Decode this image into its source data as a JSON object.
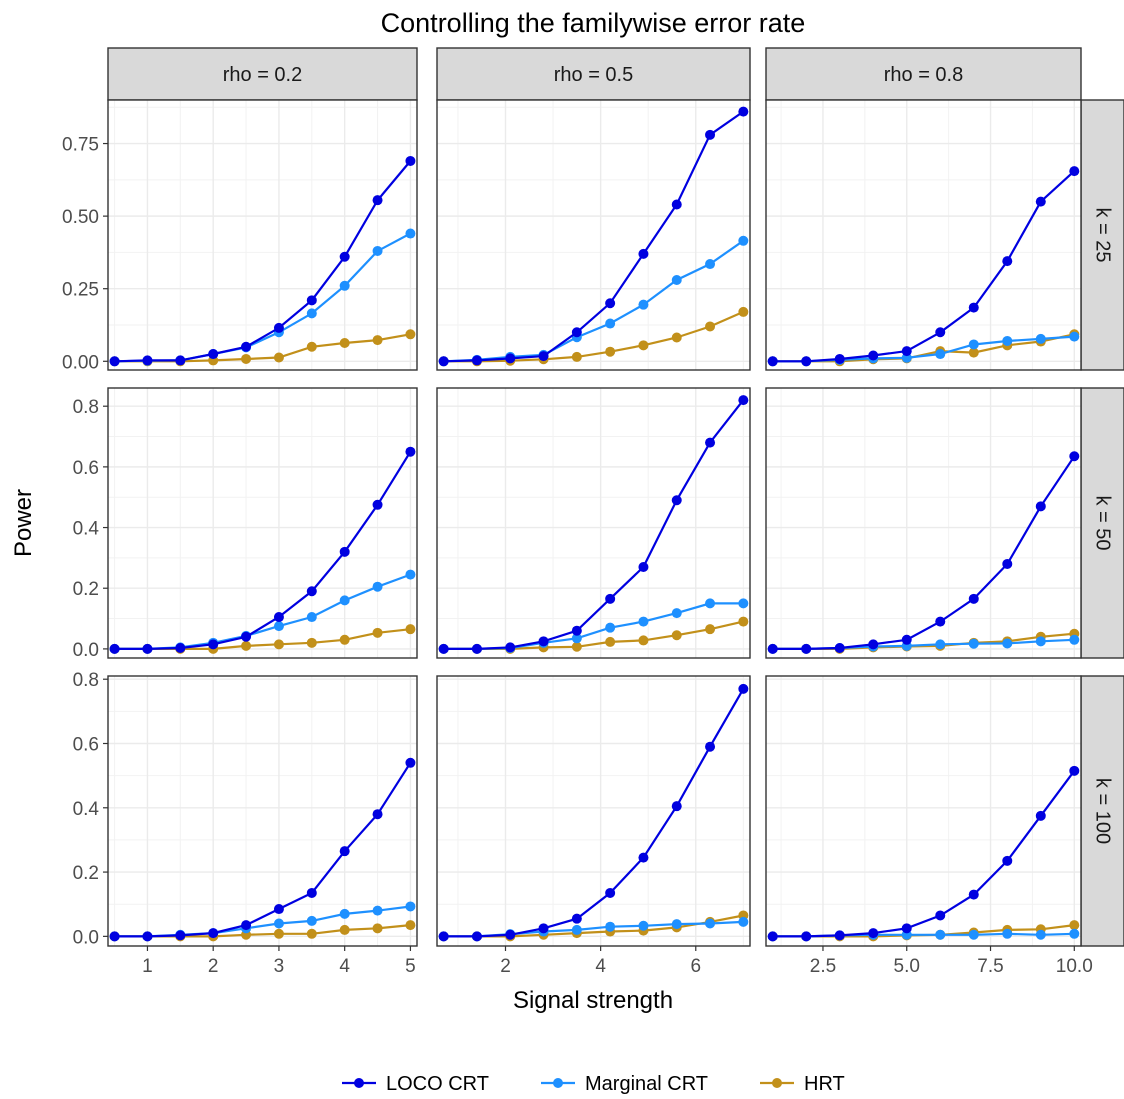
{
  "chart_data": {
    "type": "line",
    "title": "Controlling the familywise error rate",
    "xlabel": "Signal strength",
    "ylabel": "Power",
    "grid": true,
    "legend_position": "bottom",
    "facet_cols": [
      "rho = 0.2",
      "rho = 0.5",
      "rho = 0.8"
    ],
    "facet_rows": [
      "k = 25",
      "k = 50",
      "k = 100"
    ],
    "columns": [
      {
        "x": [
          0.5,
          1.0,
          1.5,
          2.0,
          2.5,
          3.0,
          3.5,
          4.0,
          4.5,
          5.0
        ],
        "xlim": [
          0.4,
          5.1
        ],
        "xticks": [
          1,
          2,
          3,
          4,
          5
        ],
        "xtick_labels": [
          "1",
          "2",
          "3",
          "4",
          "5"
        ]
      },
      {
        "x": [
          0.7,
          1.4,
          2.1,
          2.8,
          3.5,
          4.2,
          4.9,
          5.6,
          6.3,
          7.0
        ],
        "xlim": [
          0.56,
          7.14
        ],
        "xticks": [
          2,
          4,
          6
        ],
        "xtick_labels": [
          "2",
          "4",
          "6"
        ]
      },
      {
        "x": [
          1,
          2,
          3,
          4,
          5,
          6,
          7,
          8,
          9,
          10
        ],
        "xlim": [
          0.8,
          10.2
        ],
        "xticks": [
          2.5,
          5.0,
          7.5,
          10.0
        ],
        "xtick_labels": [
          "2.5",
          "5.0",
          "7.5",
          "10.0"
        ]
      }
    ],
    "rows": [
      {
        "ylim": [
          -0.03,
          0.9
        ],
        "yticks": [
          0,
          0.25,
          0.5,
          0.75
        ],
        "ytick_labels": [
          "0.00",
          "0.25",
          "0.50",
          "0.75"
        ]
      },
      {
        "ylim": [
          -0.03,
          0.86
        ],
        "yticks": [
          0,
          0.2,
          0.4,
          0.6,
          0.8
        ],
        "ytick_labels": [
          "0.0",
          "0.2",
          "0.4",
          "0.6",
          "0.8"
        ]
      },
      {
        "ylim": [
          -0.03,
          0.81
        ],
        "yticks": [
          0,
          0.2,
          0.4,
          0.6,
          0.8
        ],
        "ytick_labels": [
          "0.0",
          "0.2",
          "0.4",
          "0.6",
          "0.8"
        ]
      }
    ],
    "series_names": [
      "LOCO CRT",
      "Marginal CRT",
      "HRT"
    ],
    "series_colors": [
      "#0000e0",
      "#1e90ff",
      "#c2901a"
    ],
    "panels": [
      {
        "row": 0,
        "col": 0,
        "series": [
          [
            0,
            0.003,
            0.003,
            0.025,
            0.05,
            0.115,
            0.21,
            0.36,
            0.555,
            0.69
          ],
          [
            0,
            0.002,
            0.003,
            0.025,
            0.048,
            0.1,
            0.165,
            0.26,
            0.38,
            0.44
          ],
          [
            0,
            0,
            0,
            0.003,
            0.008,
            0.013,
            0.05,
            0.063,
            0.073,
            0.093
          ]
        ]
      },
      {
        "row": 0,
        "col": 1,
        "series": [
          [
            0,
            0.003,
            0.01,
            0.018,
            0.1,
            0.2,
            0.37,
            0.54,
            0.78,
            0.86
          ],
          [
            0,
            0.005,
            0.015,
            0.022,
            0.083,
            0.13,
            0.195,
            0.28,
            0.335,
            0.415
          ],
          [
            0,
            0,
            0.002,
            0.007,
            0.015,
            0.033,
            0.055,
            0.082,
            0.12,
            0.17
          ]
        ]
      },
      {
        "row": 0,
        "col": 2,
        "series": [
          [
            0,
            0,
            0.008,
            0.02,
            0.035,
            0.1,
            0.185,
            0.345,
            0.55,
            0.655
          ],
          [
            0,
            0,
            0.005,
            0.01,
            0.012,
            0.025,
            0.058,
            0.07,
            0.077,
            0.085
          ],
          [
            0,
            0,
            0,
            0.007,
            0.01,
            0.035,
            0.03,
            0.055,
            0.068,
            0.093
          ]
        ]
      },
      {
        "row": 1,
        "col": 0,
        "series": [
          [
            0,
            0,
            0.003,
            0.015,
            0.04,
            0.105,
            0.19,
            0.32,
            0.475,
            0.65
          ],
          [
            0,
            0,
            0.005,
            0.02,
            0.043,
            0.075,
            0.105,
            0.16,
            0.205,
            0.245
          ],
          [
            0,
            0,
            0,
            0,
            0.01,
            0.015,
            0.02,
            0.03,
            0.053,
            0.065
          ]
        ]
      },
      {
        "row": 1,
        "col": 1,
        "series": [
          [
            0,
            0,
            0.005,
            0.025,
            0.06,
            0.165,
            0.27,
            0.49,
            0.68,
            0.82
          ],
          [
            0,
            0,
            0.003,
            0.02,
            0.035,
            0.07,
            0.09,
            0.118,
            0.15,
            0.15
          ],
          [
            0,
            0,
            0,
            0.005,
            0.007,
            0.023,
            0.028,
            0.045,
            0.065,
            0.09
          ]
        ]
      },
      {
        "row": 1,
        "col": 2,
        "series": [
          [
            0,
            0,
            0.003,
            0.015,
            0.03,
            0.09,
            0.165,
            0.28,
            0.47,
            0.635
          ],
          [
            0,
            0,
            0.003,
            0.008,
            0.01,
            0.015,
            0.017,
            0.018,
            0.025,
            0.03
          ],
          [
            0,
            0,
            0,
            0.005,
            0.008,
            0.01,
            0.02,
            0.025,
            0.04,
            0.05
          ]
        ]
      },
      {
        "row": 2,
        "col": 0,
        "series": [
          [
            0,
            0,
            0.003,
            0.01,
            0.035,
            0.085,
            0.135,
            0.265,
            0.38,
            0.54
          ],
          [
            0,
            0,
            0.005,
            0.01,
            0.025,
            0.04,
            0.048,
            0.07,
            0.08,
            0.093
          ],
          [
            0,
            0,
            0,
            0,
            0.005,
            0.008,
            0.008,
            0.02,
            0.025,
            0.035
          ]
        ]
      },
      {
        "row": 2,
        "col": 1,
        "series": [
          [
            0,
            0,
            0.005,
            0.025,
            0.055,
            0.135,
            0.245,
            0.405,
            0.59,
            0.77
          ],
          [
            0,
            0,
            0.007,
            0.015,
            0.02,
            0.03,
            0.033,
            0.038,
            0.04,
            0.045
          ],
          [
            0,
            0,
            0,
            0.005,
            0.01,
            0.015,
            0.018,
            0.028,
            0.045,
            0.065
          ]
        ]
      },
      {
        "row": 2,
        "col": 2,
        "series": [
          [
            0,
            0,
            0.003,
            0.01,
            0.025,
            0.065,
            0.13,
            0.235,
            0.375,
            0.515
          ],
          [
            0,
            0,
            0.003,
            0.005,
            0.005,
            0.005,
            0.005,
            0.008,
            0.005,
            0.008
          ],
          [
            0,
            0,
            0,
            0,
            0.003,
            0.005,
            0.012,
            0.02,
            0.022,
            0.035
          ]
        ]
      }
    ]
  }
}
